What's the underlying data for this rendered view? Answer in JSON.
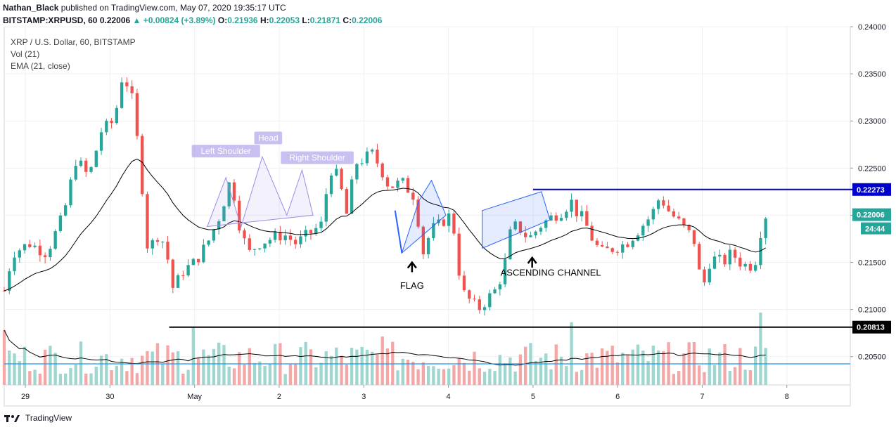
{
  "header": {
    "author": "Nathan_Black",
    "published": "published on TradingView.com, May 07, 2020 19:35:17 UTC",
    "symbol": "BITSTAMP:XRPUSD, 60",
    "last": "0.22006",
    "change": "+0.00824 (+3.89%)",
    "o_label": "O:",
    "o": "0.21936",
    "h_label": "H:",
    "h": "0.22053",
    "l_label": "L:",
    "l": "0.21871",
    "c_label": "C:",
    "c": "0.22006"
  },
  "legend": {
    "line1": "XRP / U.S. Dollar, 60, BITSTAMP",
    "line2": "Vol (21)",
    "line3": "EMA (21, close)"
  },
  "footer": {
    "brand": "TradingView"
  },
  "colors": {
    "up": "#26a69a",
    "down": "#ef5350",
    "vol_up": "#9fd6cf",
    "vol_down": "#f3a7a6",
    "ema": "#000000",
    "resistance": "#0000cc",
    "support": "#000000",
    "pattern": "#2962ff",
    "axis_text": "#131722"
  },
  "chart_data": {
    "type": "candlestick",
    "symbol": "XRP / U.S. Dollar",
    "interval": "60",
    "ylim": [
      0.202,
      0.24
    ],
    "y_ticks": [
      0.205,
      0.21,
      0.215,
      0.22,
      0.225,
      0.23,
      0.235,
      0.24
    ],
    "x_labels": [
      "29",
      "30",
      "May",
      "2",
      "3",
      "4",
      "5",
      "6",
      "7",
      "8"
    ],
    "x_label_pos": [
      0.25,
      1.25,
      2.25,
      3.25,
      4.25,
      5.25,
      6.25,
      7.25,
      8.25,
      9.25
    ],
    "x_range": [
      0.0,
      10.0
    ],
    "key_points": [
      {
        "t": 0.0,
        "p": 0.212
      },
      {
        "t": 0.1,
        "p": 0.216
      },
      {
        "t": 0.3,
        "p": 0.217
      },
      {
        "t": 0.5,
        "p": 0.216
      },
      {
        "t": 0.7,
        "p": 0.22
      },
      {
        "t": 0.85,
        "p": 0.226
      },
      {
        "t": 1.0,
        "p": 0.224
      },
      {
        "t": 1.15,
        "p": 0.229
      },
      {
        "t": 1.3,
        "p": 0.23
      },
      {
        "t": 1.4,
        "p": 0.235
      },
      {
        "t": 1.5,
        "p": 0.233
      },
      {
        "t": 1.6,
        "p": 0.226
      },
      {
        "t": 1.7,
        "p": 0.216
      },
      {
        "t": 1.8,
        "p": 0.218
      },
      {
        "t": 1.9,
        "p": 0.217
      },
      {
        "t": 2.0,
        "p": 0.212
      },
      {
        "t": 2.1,
        "p": 0.214
      },
      {
        "t": 2.25,
        "p": 0.215
      },
      {
        "t": 2.4,
        "p": 0.217
      },
      {
        "t": 2.55,
        "p": 0.22
      },
      {
        "t": 2.68,
        "p": 0.224
      },
      {
        "t": 2.8,
        "p": 0.218
      },
      {
        "t": 2.9,
        "p": 0.216
      },
      {
        "t": 3.0,
        "p": 0.217
      },
      {
        "t": 3.15,
        "p": 0.2175
      },
      {
        "t": 3.3,
        "p": 0.218
      },
      {
        "t": 3.45,
        "p": 0.217
      },
      {
        "t": 3.6,
        "p": 0.218
      },
      {
        "t": 3.75,
        "p": 0.219
      },
      {
        "t": 3.85,
        "p": 0.225
      },
      {
        "t": 3.95,
        "p": 0.224
      },
      {
        "t": 4.05,
        "p": 0.22
      },
      {
        "t": 4.15,
        "p": 0.2255
      },
      {
        "t": 4.25,
        "p": 0.226
      },
      {
        "t": 4.35,
        "p": 0.2265
      },
      {
        "t": 4.45,
        "p": 0.225
      },
      {
        "t": 4.55,
        "p": 0.223
      },
      {
        "t": 4.7,
        "p": 0.2235
      },
      {
        "t": 4.85,
        "p": 0.222
      },
      {
        "t": 4.95,
        "p": 0.216
      },
      {
        "t": 5.05,
        "p": 0.2185
      },
      {
        "t": 5.15,
        "p": 0.219
      },
      {
        "t": 5.25,
        "p": 0.22
      },
      {
        "t": 5.33,
        "p": 0.218
      },
      {
        "t": 5.4,
        "p": 0.212
      },
      {
        "t": 5.5,
        "p": 0.211
      },
      {
        "t": 5.6,
        "p": 0.21
      },
      {
        "t": 5.7,
        "p": 0.211
      },
      {
        "t": 5.8,
        "p": 0.212
      },
      {
        "t": 5.9,
        "p": 0.214
      },
      {
        "t": 6.0,
        "p": 0.219
      },
      {
        "t": 6.1,
        "p": 0.2185
      },
      {
        "t": 6.2,
        "p": 0.2175
      },
      {
        "t": 6.35,
        "p": 0.219
      },
      {
        "t": 6.5,
        "p": 0.22
      },
      {
        "t": 6.6,
        "p": 0.2205
      },
      {
        "t": 6.7,
        "p": 0.2215
      },
      {
        "t": 6.75,
        "p": 0.2205
      },
      {
        "t": 6.85,
        "p": 0.2195
      },
      {
        "t": 6.95,
        "p": 0.2175
      },
      {
        "t": 7.05,
        "p": 0.216
      },
      {
        "t": 7.2,
        "p": 0.2165
      },
      {
        "t": 7.35,
        "p": 0.217
      },
      {
        "t": 7.5,
        "p": 0.2185
      },
      {
        "t": 7.65,
        "p": 0.22
      },
      {
        "t": 7.75,
        "p": 0.222
      },
      {
        "t": 7.85,
        "p": 0.2205
      },
      {
        "t": 7.95,
        "p": 0.2195
      },
      {
        "t": 8.05,
        "p": 0.2185
      },
      {
        "t": 8.15,
        "p": 0.2175
      },
      {
        "t": 8.25,
        "p": 0.212
      },
      {
        "t": 8.35,
        "p": 0.2155
      },
      {
        "t": 8.5,
        "p": 0.215
      },
      {
        "t": 8.6,
        "p": 0.216
      },
      {
        "t": 8.7,
        "p": 0.215
      },
      {
        "t": 8.8,
        "p": 0.2145
      },
      {
        "t": 8.9,
        "p": 0.2155
      },
      {
        "t": 8.95,
        "p": 0.219
      },
      {
        "t": 9.0,
        "p": 0.22
      }
    ],
    "volume_range": [
      0,
      1
    ],
    "horizontal_lines": [
      {
        "price": 0.22273,
        "label": "0.22273",
        "t_start": 6.25,
        "t_end": 10.4,
        "color": "#0000cc"
      },
      {
        "price": 0.20813,
        "label": "0.20813",
        "t_start": 1.95,
        "t_end": 10.4,
        "color": "#000000"
      }
    ],
    "last_price_label": "0.22006",
    "countdown_label": "24:44",
    "volume_ma_line_label": "",
    "annotations": {
      "left_shoulder": "Left Shoulder",
      "head": "Head",
      "right_shoulder": "Right Shoulder",
      "flag": "FLAG",
      "ascending_channel": "ASCENDING CHANNEL"
    },
    "grid": true
  }
}
